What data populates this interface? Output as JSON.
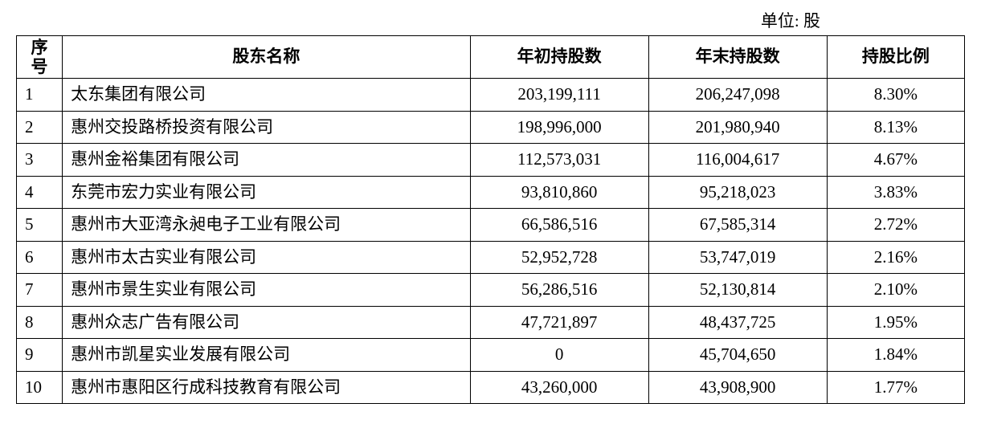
{
  "unit_label": "单位: 股",
  "table": {
    "columns": {
      "seq_line1": "序",
      "seq_line2": "号",
      "name": "股东名称",
      "begin": "年初持股数",
      "end": "年末持股数",
      "ratio": "持股比例"
    },
    "rows": [
      {
        "seq": "1",
        "name": "太东集团有限公司",
        "begin": "203,199,111",
        "end": "206,247,098",
        "ratio": "8.30%"
      },
      {
        "seq": "2",
        "name": "惠州交投路桥投资有限公司",
        "begin": "198,996,000",
        "end": "201,980,940",
        "ratio": "8.13%"
      },
      {
        "seq": "3",
        "name": "惠州金裕集团有限公司",
        "begin": "112,573,031",
        "end": "116,004,617",
        "ratio": "4.67%"
      },
      {
        "seq": "4",
        "name": "东莞市宏力实业有限公司",
        "begin": "93,810,860",
        "end": "95,218,023",
        "ratio": "3.83%"
      },
      {
        "seq": "5",
        "name": "惠州市大亚湾永昶电子工业有限公司",
        "begin": "66,586,516",
        "end": "67,585,314",
        "ratio": "2.72%"
      },
      {
        "seq": "6",
        "name": "惠州市太古实业有限公司",
        "begin": "52,952,728",
        "end": "53,747,019",
        "ratio": "2.16%"
      },
      {
        "seq": "7",
        "name": "惠州市景生实业有限公司",
        "begin": "56,286,516",
        "end": "52,130,814",
        "ratio": "2.10%"
      },
      {
        "seq": "8",
        "name": "惠州众志广告有限公司",
        "begin": "47,721,897",
        "end": "48,437,725",
        "ratio": "1.95%"
      },
      {
        "seq": "9",
        "name": "惠州市凯星实业发展有限公司",
        "begin": "0",
        "end": "45,704,650",
        "ratio": "1.84%"
      },
      {
        "seq": "10",
        "name": "惠州市惠阳区行成科技教育有限公司",
        "begin": "43,260,000",
        "end": "43,908,900",
        "ratio": "1.77%"
      }
    ]
  }
}
